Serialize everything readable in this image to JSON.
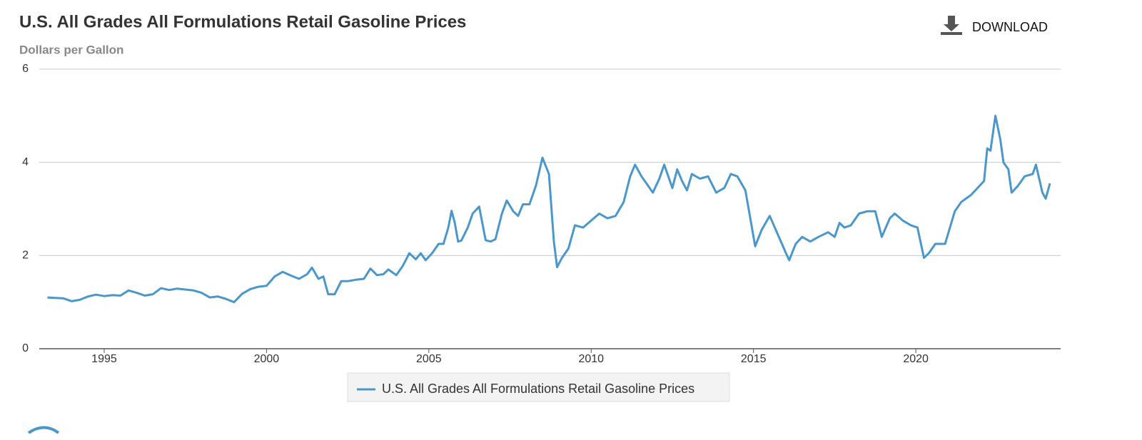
{
  "chart_data": {
    "type": "line",
    "title": "U.S. All Grades All Formulations Retail Gasoline Prices",
    "subtitle": "Dollars per Gallon",
    "download_label": "DOWNLOAD",
    "xlim": [
      1993,
      2024.46
    ],
    "xticks": [
      1995,
      2000,
      2005,
      2010,
      2015,
      2020
    ],
    "ylim": [
      0,
      6
    ],
    "yticks": [
      0,
      2,
      4,
      6
    ],
    "grid": true,
    "legend": "bottom",
    "series": [
      {
        "name": "U.S. All Grades All Formulations Retail Gasoline Prices",
        "color": "#4a97cc",
        "x": [
          1993.25,
          1993.5,
          1993.75,
          1994.0,
          1994.25,
          1994.5,
          1994.75,
          1995.0,
          1995.25,
          1995.5,
          1995.75,
          1996.0,
          1996.25,
          1996.5,
          1996.75,
          1997.0,
          1997.25,
          1997.5,
          1997.75,
          1998.0,
          1998.25,
          1998.5,
          1998.75,
          1999.0,
          1999.25,
          1999.5,
          1999.75,
          2000.0,
          2000.25,
          2000.5,
          2000.75,
          2001.0,
          2001.25,
          2001.4,
          2001.6,
          2001.75,
          2001.9,
          2002.1,
          2002.3,
          2002.5,
          2002.75,
          2003.0,
          2003.2,
          2003.4,
          2003.6,
          2003.75,
          2004.0,
          2004.2,
          2004.4,
          2004.6,
          2004.75,
          2004.9,
          2005.1,
          2005.3,
          2005.45,
          2005.6,
          2005.7,
          2005.8,
          2005.9,
          2006.0,
          2006.2,
          2006.35,
          2006.55,
          2006.75,
          2006.9,
          2007.05,
          2007.25,
          2007.4,
          2007.6,
          2007.75,
          2007.9,
          2008.1,
          2008.3,
          2008.5,
          2008.7,
          2008.85,
          2008.95,
          2009.1,
          2009.3,
          2009.5,
          2009.75,
          2010.0,
          2010.25,
          2010.5,
          2010.75,
          2011.0,
          2011.2,
          2011.35,
          2011.55,
          2011.75,
          2011.9,
          2012.1,
          2012.25,
          2012.5,
          2012.65,
          2012.8,
          2012.95,
          2013.1,
          2013.35,
          2013.6,
          2013.85,
          2014.1,
          2014.3,
          2014.5,
          2014.75,
          2014.9,
          2015.05,
          2015.25,
          2015.5,
          2015.75,
          2016.0,
          2016.1,
          2016.3,
          2016.5,
          2016.75,
          2017.0,
          2017.3,
          2017.5,
          2017.65,
          2017.8,
          2018.0,
          2018.25,
          2018.5,
          2018.75,
          2018.95,
          2019.2,
          2019.35,
          2019.6,
          2019.85,
          2020.05,
          2020.25,
          2020.4,
          2020.6,
          2020.9,
          2021.2,
          2021.4,
          2021.7,
          2021.9,
          2022.1,
          2022.2,
          2022.3,
          2022.45,
          2022.6,
          2022.7,
          2022.85,
          2022.95,
          2023.15,
          2023.35,
          2023.6,
          2023.7,
          2023.9,
          2024.0,
          2024.13
        ],
        "values": [
          1.1,
          1.09,
          1.08,
          1.02,
          1.05,
          1.12,
          1.16,
          1.13,
          1.15,
          1.14,
          1.25,
          1.2,
          1.14,
          1.17,
          1.3,
          1.26,
          1.29,
          1.27,
          1.25,
          1.2,
          1.1,
          1.12,
          1.07,
          1.0,
          1.18,
          1.28,
          1.33,
          1.35,
          1.55,
          1.65,
          1.57,
          1.5,
          1.6,
          1.74,
          1.5,
          1.55,
          1.17,
          1.17,
          1.45,
          1.45,
          1.48,
          1.5,
          1.72,
          1.58,
          1.6,
          1.7,
          1.58,
          1.78,
          2.05,
          1.92,
          2.05,
          1.9,
          2.05,
          2.25,
          2.25,
          2.6,
          2.96,
          2.7,
          2.3,
          2.32,
          2.6,
          2.9,
          3.05,
          2.33,
          2.3,
          2.35,
          2.9,
          3.18,
          2.95,
          2.85,
          3.1,
          3.1,
          3.5,
          4.1,
          3.75,
          2.3,
          1.75,
          1.95,
          2.15,
          2.65,
          2.6,
          2.75,
          2.9,
          2.8,
          2.85,
          3.15,
          3.7,
          3.95,
          3.7,
          3.5,
          3.35,
          3.65,
          3.95,
          3.45,
          3.85,
          3.6,
          3.4,
          3.75,
          3.65,
          3.7,
          3.35,
          3.45,
          3.75,
          3.7,
          3.4,
          2.8,
          2.2,
          2.55,
          2.85,
          2.45,
          2.05,
          1.9,
          2.25,
          2.4,
          2.3,
          2.4,
          2.5,
          2.4,
          2.7,
          2.6,
          2.65,
          2.9,
          2.95,
          2.95,
          2.4,
          2.8,
          2.9,
          2.75,
          2.65,
          2.6,
          1.95,
          2.05,
          2.25,
          2.25,
          2.95,
          3.15,
          3.3,
          3.45,
          3.6,
          4.3,
          4.25,
          5.0,
          4.5,
          4.0,
          3.85,
          3.35,
          3.5,
          3.7,
          3.75,
          3.95,
          3.35,
          3.22,
          3.55
        ]
      }
    ]
  }
}
